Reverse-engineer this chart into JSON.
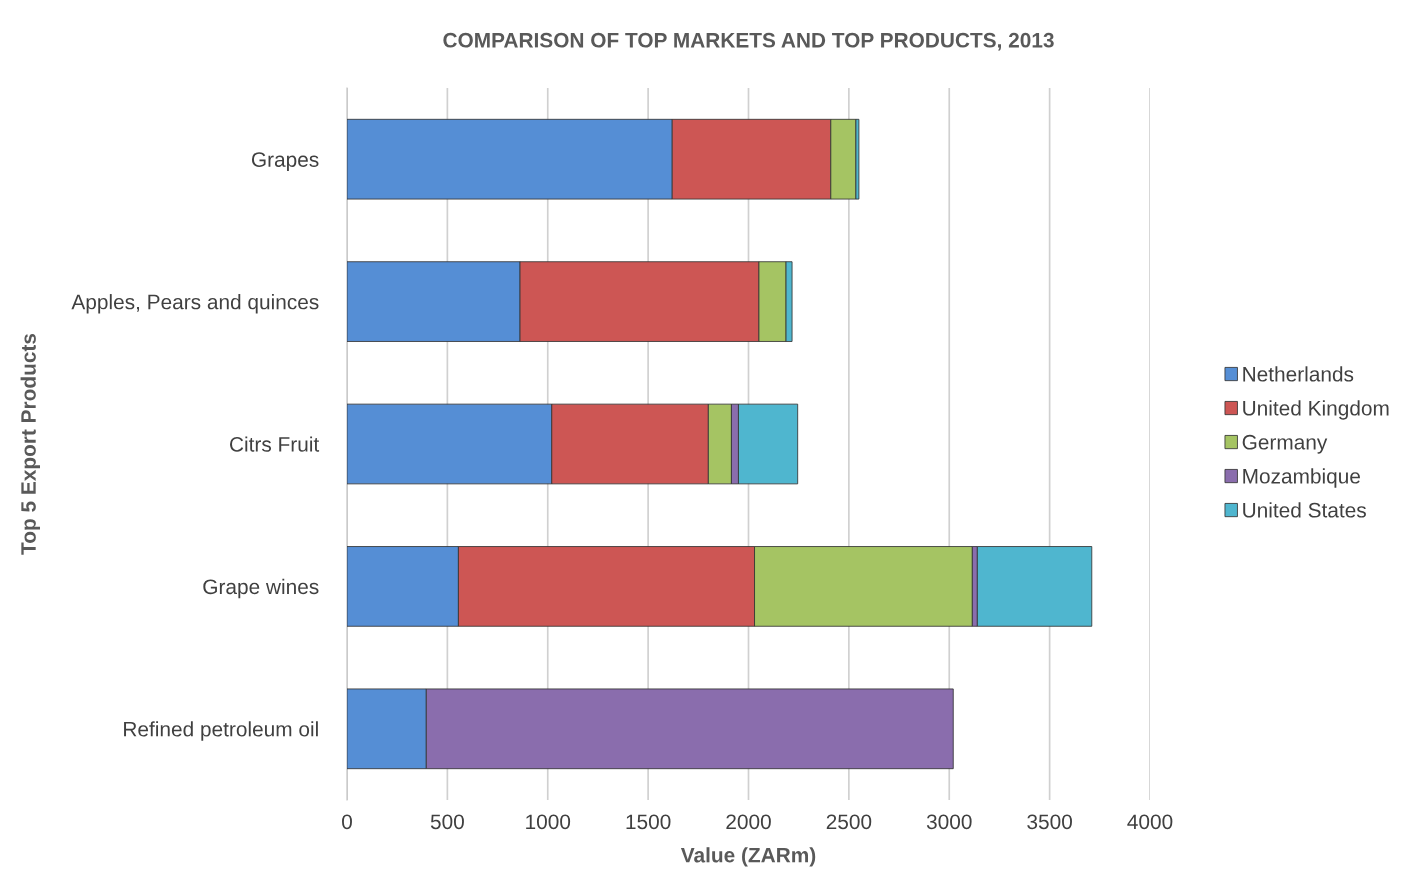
{
  "chart_data": {
    "type": "bar",
    "orientation": "horizontal",
    "stacked": true,
    "title": "COMPARISON OF TOP MARKETS AND TOP PRODUCTS, 2013",
    "xlabel": "Value (ZARm)",
    "ylabel": "Top 5 Export Products",
    "categories": [
      "Grapes",
      "Apples, Pears and quinces",
      "Citrs Fruit",
      "Grape wines",
      "Refined petroleum oil"
    ],
    "series": [
      {
        "name": "Netherlands",
        "color": "#558ed5",
        "values": [
          1620,
          862,
          1020,
          555,
          395
        ]
      },
      {
        "name": "United Kingdom",
        "color": "#cd5654",
        "values": [
          790,
          1190,
          780,
          1475,
          null
        ]
      },
      {
        "name": "Germany",
        "color": "#a5c463",
        "values": [
          125,
          135,
          115,
          1085,
          null
        ]
      },
      {
        "name": "Mozambique",
        "color": "#8a6dad",
        "values": [
          null,
          null,
          35,
          25,
          2625
        ]
      },
      {
        "name": "United States",
        "color": "#4fb6cf",
        "values": [
          15,
          30,
          295,
          570,
          null
        ]
      }
    ],
    "xlim": [
      0,
      4000
    ],
    "xticks": [
      0,
      500,
      1000,
      1500,
      2000,
      2500,
      3000,
      3500,
      4000
    ],
    "grid": "x",
    "legend": "right"
  }
}
